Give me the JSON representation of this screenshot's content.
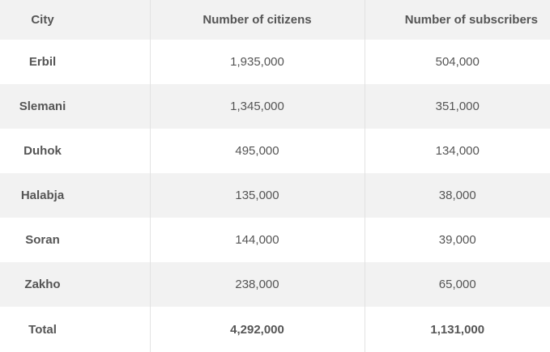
{
  "table": {
    "headers": [
      "City",
      "Number of citizens",
      "Number of subscribers"
    ],
    "rows": [
      {
        "city": "Erbil",
        "citizens": "1,935,000",
        "subscribers": "504,000"
      },
      {
        "city": "Slemani",
        "citizens": "1,345,000",
        "subscribers": "351,000"
      },
      {
        "city": "Duhok",
        "citizens": "495,000",
        "subscribers": "134,000"
      },
      {
        "city": "Halabja",
        "citizens": "135,000",
        "subscribers": "38,000"
      },
      {
        "city": "Soran",
        "citizens": "144,000",
        "subscribers": "39,000"
      },
      {
        "city": "Zakho",
        "citizens": "238,000",
        "subscribers": "65,000"
      }
    ],
    "total": {
      "label": "Total",
      "citizens": "4,292,000",
      "subscribers": "1,131,000"
    }
  },
  "colors": {
    "stripe": "#f2f2f2",
    "text": "#555555",
    "divider": "#e2e2e2"
  }
}
